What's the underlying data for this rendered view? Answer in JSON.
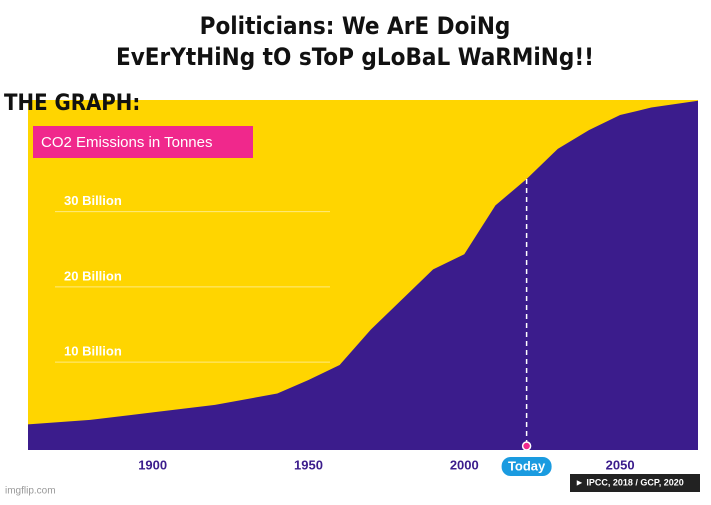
{
  "meme": {
    "caption": [
      "Politicians: We ArE DoiNg",
      "EvErYtHiNg tO sToP gLoBaL WaRMiNg!!"
    ],
    "label": "THE GRAPH:",
    "watermark": "imgflip.com"
  },
  "chart_data": {
    "type": "area",
    "title": "CO2 Emissions in Tonnes",
    "source": "► IPCC, 2018 / GCP, 2020",
    "x": [
      1860,
      1880,
      1900,
      1920,
      1940,
      1950,
      1960,
      1970,
      1980,
      1990,
      2000,
      2010,
      2020,
      2030,
      2040,
      2050,
      2060,
      2075
    ],
    "values": [
      0.4,
      1,
      2,
      3,
      4.5,
      6.3,
      8.3,
      13,
      17,
      21,
      23,
      29.5,
      33,
      37,
      39.5,
      41.5,
      42.5,
      43.4
    ],
    "color": "#3b1c8c",
    "background": "#ffd500",
    "xlim": [
      1860,
      2075
    ],
    "xticks": [
      1900,
      1950,
      2000,
      2050
    ],
    "ylim": [
      -3,
      43.5
    ],
    "yticks": [
      {
        "value": 10,
        "label": "10 Billion"
      },
      {
        "value": 20,
        "label": "20 Billion"
      },
      {
        "value": 30,
        "label": "30 Billion"
      }
    ],
    "grid": true,
    "today": {
      "x": 2020,
      "label": "Today"
    }
  }
}
